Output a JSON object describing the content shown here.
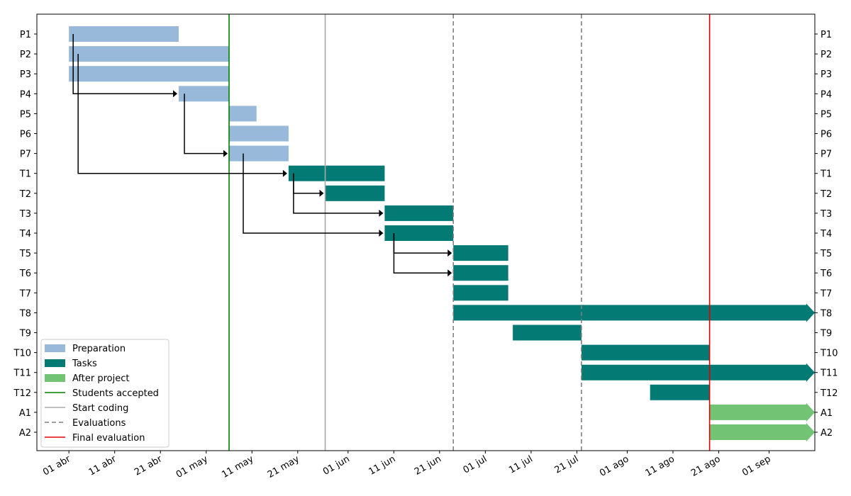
{
  "chart_data": {
    "type": "gantt",
    "year": 2018,
    "x_axis": {
      "type": "date",
      "min": "2018-03-25",
      "max": "2018-09-11",
      "ticks": [
        {
          "date": "2018-04-01",
          "label": "01 abr"
        },
        {
          "date": "2018-04-11",
          "label": "11 abr"
        },
        {
          "date": "2018-04-21",
          "label": "21 abr"
        },
        {
          "date": "2018-05-01",
          "label": "01 may"
        },
        {
          "date": "2018-05-11",
          "label": "11 may"
        },
        {
          "date": "2018-05-21",
          "label": "21 may"
        },
        {
          "date": "2018-06-01",
          "label": "01 jun"
        },
        {
          "date": "2018-06-11",
          "label": "11 jun"
        },
        {
          "date": "2018-06-21",
          "label": "21 jun"
        },
        {
          "date": "2018-07-01",
          "label": "01 jul"
        },
        {
          "date": "2018-07-11",
          "label": "11 jul"
        },
        {
          "date": "2018-07-21",
          "label": "21 jul"
        },
        {
          "date": "2018-08-01",
          "label": "01 ago"
        },
        {
          "date": "2018-08-11",
          "label": "11 ago"
        },
        {
          "date": "2018-08-21",
          "label": "21 ago"
        },
        {
          "date": "2018-09-01",
          "label": "01 sep"
        }
      ]
    },
    "categories": [
      "P1",
      "P2",
      "P3",
      "P4",
      "P5",
      "P6",
      "P7",
      "T1",
      "T2",
      "T3",
      "T4",
      "T5",
      "T6",
      "T7",
      "T8",
      "T9",
      "T10",
      "T11",
      "T12",
      "A1",
      "A2"
    ],
    "tasks": [
      {
        "label": "P1",
        "group": "Preparation",
        "start": "2018-04-01",
        "end": "2018-04-25"
      },
      {
        "label": "P2",
        "group": "Preparation",
        "start": "2018-04-01",
        "end": "2018-05-06"
      },
      {
        "label": "P3",
        "group": "Preparation",
        "start": "2018-04-01",
        "end": "2018-05-06"
      },
      {
        "label": "P4",
        "group": "Preparation",
        "start": "2018-04-25",
        "end": "2018-05-06"
      },
      {
        "label": "P5",
        "group": "Preparation",
        "start": "2018-05-06",
        "end": "2018-05-12"
      },
      {
        "label": "P6",
        "group": "Preparation",
        "start": "2018-05-06",
        "end": "2018-05-19"
      },
      {
        "label": "P7",
        "group": "Preparation",
        "start": "2018-05-06",
        "end": "2018-05-19"
      },
      {
        "label": "T1",
        "group": "Tasks",
        "start": "2018-05-19",
        "end": "2018-06-09"
      },
      {
        "label": "T2",
        "group": "Tasks",
        "start": "2018-05-27",
        "end": "2018-06-09"
      },
      {
        "label": "T3",
        "group": "Tasks",
        "start": "2018-06-09",
        "end": "2018-06-24"
      },
      {
        "label": "T4",
        "group": "Tasks",
        "start": "2018-06-09",
        "end": "2018-06-24"
      },
      {
        "label": "T5",
        "group": "Tasks",
        "start": "2018-06-24",
        "end": "2018-07-06"
      },
      {
        "label": "T6",
        "group": "Tasks",
        "start": "2018-06-24",
        "end": "2018-07-06"
      },
      {
        "label": "T7",
        "group": "Tasks",
        "start": "2018-06-24",
        "end": "2018-07-06"
      },
      {
        "label": "T8",
        "group": "Tasks",
        "start": "2018-06-24",
        "end": "2018-09-11",
        "open_end": true
      },
      {
        "label": "T9",
        "group": "Tasks",
        "start": "2018-07-07",
        "end": "2018-07-22"
      },
      {
        "label": "T10",
        "group": "Tasks",
        "start": "2018-07-22",
        "end": "2018-08-19"
      },
      {
        "label": "T11",
        "group": "Tasks",
        "start": "2018-07-22",
        "end": "2018-09-11",
        "open_end": true
      },
      {
        "label": "T12",
        "group": "Tasks",
        "start": "2018-08-06",
        "end": "2018-08-19"
      },
      {
        "label": "A1",
        "group": "After project",
        "start": "2018-08-19",
        "end": "2018-09-11",
        "open_end": true
      },
      {
        "label": "A2",
        "group": "After project",
        "start": "2018-08-19",
        "end": "2018-09-11",
        "open_end": true
      }
    ],
    "dependencies": [
      {
        "from": "P1",
        "to": "P4"
      },
      {
        "from": "P2",
        "to": "T1"
      },
      {
        "from": "P4",
        "to": "P7"
      },
      {
        "from": "P7",
        "to": "T4"
      },
      {
        "from": "T1",
        "to": "T2"
      },
      {
        "from": "T1",
        "to": "T3"
      },
      {
        "from": "T4",
        "to": "T5"
      },
      {
        "from": "T4",
        "to": "T6"
      }
    ],
    "milestones": [
      {
        "label": "Students accepted",
        "date": "2018-05-06",
        "style": "solid",
        "color": "#008000"
      },
      {
        "label": "Start coding",
        "date": "2018-05-27",
        "style": "solid",
        "color": "#a9a9a9"
      },
      {
        "label": "Evaluations",
        "date": "2018-06-24",
        "style": "dashed",
        "color": "#808080"
      },
      {
        "label": "Evaluations",
        "date": "2018-07-22",
        "style": "dashed",
        "color": "#808080",
        "in_legend": false
      },
      {
        "label": "Final evaluation",
        "date": "2018-08-19",
        "style": "solid",
        "color": "#e00000"
      }
    ],
    "legend": {
      "position": "lower-left",
      "items": [
        {
          "label": "Preparation",
          "kind": "patch",
          "color": "#98b9da"
        },
        {
          "label": "Tasks",
          "kind": "patch",
          "color": "#047a75"
        },
        {
          "label": "After project",
          "kind": "patch",
          "color": "#73c374"
        },
        {
          "label": "Students accepted",
          "kind": "line",
          "color": "#008000",
          "dashed": false
        },
        {
          "label": "Start coding",
          "kind": "line",
          "color": "#a9a9a9",
          "dashed": false
        },
        {
          "label": "Evaluations",
          "kind": "line",
          "color": "#808080",
          "dashed": true
        },
        {
          "label": "Final evaluation",
          "kind": "line",
          "color": "#e00000",
          "dashed": false
        }
      ]
    },
    "group_colors": {
      "Preparation": "#98b9da",
      "Tasks": "#047a75",
      "After project": "#73c374"
    },
    "y_labels_both_sides": true
  }
}
